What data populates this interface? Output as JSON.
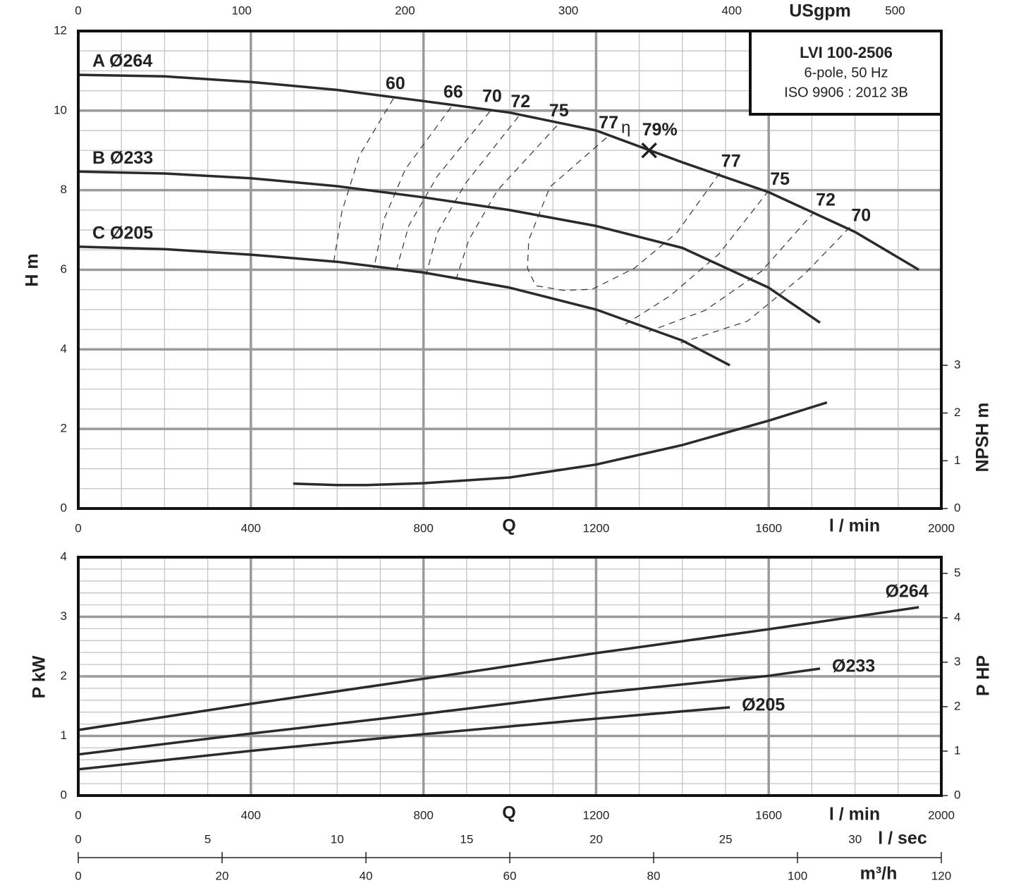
{
  "chart_data": [
    {
      "type": "line",
      "xlabel": "Q",
      "xunit": "l / min",
      "ylabel": "H m",
      "y2label": "NPSH m",
      "x2label": "USgpm",
      "xlim": [
        0,
        2000
      ],
      "xticks": [
        0,
        400,
        800,
        1200,
        1600,
        2000
      ],
      "xminor": [
        100,
        200,
        300,
        500,
        600,
        700,
        900,
        1000,
        1100,
        1300,
        1400,
        1500,
        1700,
        1800,
        1900
      ],
      "ylim": [
        0,
        12
      ],
      "yticks": [
        0,
        2,
        4,
        6,
        8,
        10,
        12
      ],
      "yminor": [
        0.5,
        1,
        1.5,
        2.5,
        3,
        3.5,
        4.5,
        5,
        5.5,
        6.5,
        7,
        7.5,
        8.5,
        9,
        9.5,
        10.5,
        11,
        11.5
      ],
      "y2lim": [
        0,
        10
      ],
      "y2ticks": [
        0,
        1,
        2,
        3
      ],
      "x2lim": [
        0,
        528.3
      ],
      "x2ticks": [
        0,
        100,
        200,
        300,
        400,
        500
      ],
      "grid": true,
      "info_box": [
        "LVI 100-2506",
        "6-pole, 50 Hz",
        "ISO 9906 : 2012 3B"
      ],
      "series": [
        {
          "name": "A Ø264",
          "color": "#2b2b2b",
          "x": [
            0,
            200,
            400,
            600,
            800,
            1000,
            1200,
            1400,
            1600,
            1800,
            1948
          ],
          "values": [
            10.9,
            10.86,
            10.72,
            10.52,
            10.24,
            9.95,
            9.5,
            8.7,
            7.95,
            6.95,
            6.0
          ]
        },
        {
          "name": "B Ø233",
          "color": "#2b2b2b",
          "x": [
            0,
            200,
            400,
            600,
            800,
            1000,
            1200,
            1400,
            1600,
            1719
          ],
          "values": [
            8.47,
            8.42,
            8.3,
            8.1,
            7.82,
            7.5,
            7.1,
            6.55,
            5.55,
            4.67
          ]
        },
        {
          "name": "C Ø205",
          "color": "#2b2b2b",
          "x": [
            0,
            200,
            400,
            600,
            800,
            1000,
            1200,
            1400,
            1510
          ],
          "values": [
            6.58,
            6.52,
            6.38,
            6.2,
            5.93,
            5.55,
            5.0,
            4.22,
            3.6
          ]
        },
        {
          "axis": "y2",
          "color": "#2b2b2b",
          "x": [
            498,
            600,
            668,
            800,
            1000,
            1200,
            1400,
            1600,
            1735
          ],
          "values": [
            0.52,
            0.49,
            0.49,
            0.53,
            0.65,
            0.92,
            1.33,
            1.84,
            2.22
          ]
        }
      ],
      "efficiency_contours": [
        {
          "name": "60",
          "x": [
            730,
            652,
            611,
            592
          ],
          "values": [
            10.3,
            8.88,
            7.46,
            6.19
          ]
        },
        {
          "name": "66",
          "x": [
            864,
            758,
            709,
            685
          ],
          "values": [
            10.09,
            8.53,
            7.28,
            6.04
          ]
        },
        {
          "name": "70",
          "x": [
            954,
            832,
            766,
            737
          ],
          "values": [
            9.98,
            8.35,
            7.11,
            5.99
          ]
        },
        {
          "name": "72",
          "x": [
            1020,
            897,
            832,
            806
          ],
          "values": [
            9.85,
            8.17,
            6.93,
            5.87
          ]
        },
        {
          "name": "75",
          "x": [
            1109,
            971,
            905,
            877
          ],
          "values": [
            9.62,
            7.99,
            6.75,
            5.81
          ]
        },
        {
          "name": "77",
          "x": [
            1224,
            1093,
            1044,
            1041,
            1060,
            1126,
            1191,
            1289,
            1387,
            1493
          ],
          "values": [
            9.32,
            8.08,
            6.75,
            6.04,
            5.6,
            5.48,
            5.51,
            6.04,
            6.93,
            8.53
          ]
        },
        {
          "name": "75",
          "x": [
            1600,
            1485,
            1371,
            1268
          ],
          "values": [
            7.99,
            6.4,
            5.34,
            4.63
          ]
        },
        {
          "name": "72",
          "x": [
            1706,
            1583,
            1453,
            1322
          ],
          "values": [
            7.46,
            5.96,
            4.98,
            4.45
          ]
        },
        {
          "name": "70",
          "x": [
            1788,
            1681,
            1551,
            1387
          ],
          "values": [
            7.07,
            5.87,
            4.71,
            4.13
          ]
        }
      ],
      "bep": {
        "x": 1323,
        "y": 9.0,
        "symbol": "η",
        "label": "79%"
      }
    },
    {
      "type": "line",
      "xlabel": "Q",
      "xunit": "l / min",
      "ylabel": "P kW",
      "y2label": "P HP",
      "xlim": [
        0,
        2000
      ],
      "xticks": [
        0,
        400,
        800,
        1200,
        1600,
        2000
      ],
      "xminor": [
        100,
        200,
        300,
        500,
        600,
        700,
        900,
        1000,
        1100,
        1300,
        1400,
        1500,
        1700,
        1800,
        1900
      ],
      "ylim": [
        0,
        4
      ],
      "yticks": [
        0,
        1,
        2,
        3,
        4
      ],
      "yminor": [
        0.2,
        0.4,
        0.6,
        0.8,
        1.2,
        1.4,
        1.6,
        1.8,
        2.2,
        2.4,
        2.6,
        2.8,
        3.2,
        3.4,
        3.6,
        3.8
      ],
      "y2lim": [
        0,
        5.364
      ],
      "y2ticks": [
        0,
        1,
        2,
        3,
        4,
        5
      ],
      "x2label": "l / sec",
      "x2lim": [
        0,
        33.33
      ],
      "x2ticks": [
        0,
        5,
        10,
        15,
        20,
        25,
        30
      ],
      "x3label": "m³/h",
      "x3lim": [
        0,
        120
      ],
      "x3ticks": [
        0,
        20,
        40,
        60,
        80,
        100,
        120
      ],
      "grid": true,
      "series": [
        {
          "name": "Ø264",
          "color": "#2b2b2b",
          "x": [
            0,
            400,
            800,
            1200,
            1600,
            1948
          ],
          "values": [
            1.1,
            1.54,
            1.96,
            2.39,
            2.79,
            3.16
          ]
        },
        {
          "name": "Ø233",
          "color": "#2b2b2b",
          "x": [
            0,
            400,
            800,
            1200,
            1600,
            1719
          ],
          "values": [
            0.69,
            1.04,
            1.37,
            1.72,
            2.01,
            2.13
          ]
        },
        {
          "name": "Ø205",
          "color": "#2b2b2b",
          "x": [
            0,
            400,
            800,
            1200,
            1510
          ],
          "values": [
            0.44,
            0.75,
            1.03,
            1.29,
            1.48
          ]
        }
      ]
    }
  ]
}
